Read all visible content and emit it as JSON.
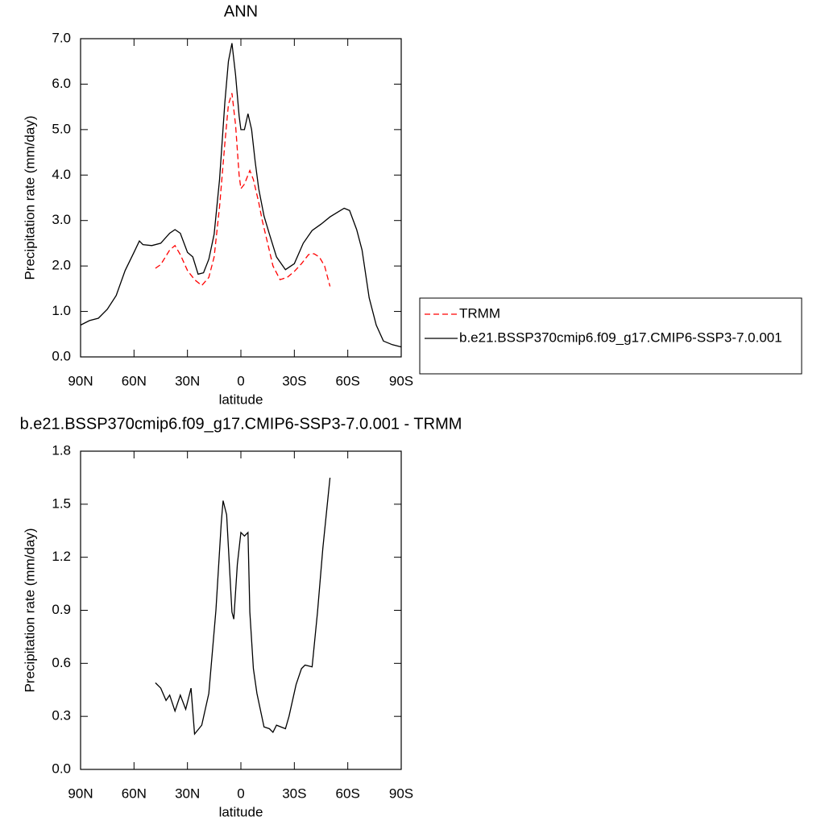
{
  "chart_data": [
    {
      "type": "line",
      "title": "ANN",
      "xlabel": "latitude",
      "ylabel": "Precipitation rate (mm/day)",
      "xlim": [
        90,
        -90
      ],
      "xticks": [
        {
          "value": 90,
          "label": "90N"
        },
        {
          "value": 60,
          "label": "60N"
        },
        {
          "value": 30,
          "label": "30N"
        },
        0,
        {
          "value": -30,
          "label": "30S"
        },
        {
          "value": -60,
          "label": "60S"
        },
        {
          "value": -90,
          "label": "90S"
        }
      ],
      "ylim": [
        0,
        7
      ],
      "yticks": [
        {
          "value": 0,
          "label": "0.0"
        },
        {
          "value": 1,
          "label": "1.0"
        },
        {
          "value": 2,
          "label": "2.0"
        },
        {
          "value": 3,
          "label": "3.0"
        },
        {
          "value": 4,
          "label": "4.0"
        },
        {
          "value": 5,
          "label": "5.0"
        },
        {
          "value": 6,
          "label": "6.0"
        },
        {
          "value": 7,
          "label": "7.0"
        }
      ],
      "legend": "right",
      "series": [
        {
          "name": "TRMM",
          "color": "#ff0000",
          "dashed": true,
          "x": [
            48,
            45,
            40,
            37,
            34,
            30,
            26,
            22,
            18,
            15,
            12,
            9,
            7,
            5,
            3,
            1,
            0,
            -2,
            -5,
            -7,
            -10,
            -12,
            -15,
            -18,
            -22,
            -26,
            -30,
            -34,
            -38,
            -41,
            -44,
            -47,
            -50
          ],
          "values": [
            1.95,
            2.03,
            2.35,
            2.45,
            2.25,
            1.9,
            1.7,
            1.57,
            1.75,
            2.2,
            3.3,
            4.7,
            5.55,
            5.8,
            5.1,
            4.0,
            3.7,
            3.8,
            4.1,
            3.9,
            3.4,
            3.0,
            2.5,
            2.0,
            1.7,
            1.75,
            1.88,
            2.05,
            2.25,
            2.27,
            2.2,
            2.0,
            1.55
          ]
        },
        {
          "name": "b.e21.BSSP370cmip6.f09_g17.CMIP6-SSP3-7.0.001",
          "color": "#000000",
          "dashed": false,
          "x": [
            90,
            85,
            80,
            75,
            70,
            65,
            60,
            57,
            55,
            50,
            45,
            40,
            37,
            34,
            30,
            27,
            24,
            21,
            18,
            15,
            12,
            9,
            7,
            5,
            3,
            1,
            0,
            -2,
            -4,
            -6,
            -8,
            -10,
            -13,
            -16,
            -20,
            -25,
            -30,
            -35,
            -40,
            -45,
            -50,
            -55,
            -58,
            -61,
            -65,
            -68,
            -72,
            -76,
            -80,
            -85,
            -90
          ],
          "values": [
            0.7,
            0.8,
            0.85,
            1.05,
            1.35,
            1.9,
            2.3,
            2.55,
            2.47,
            2.45,
            2.5,
            2.72,
            2.8,
            2.72,
            2.3,
            2.2,
            1.82,
            1.85,
            2.15,
            2.7,
            3.9,
            5.6,
            6.5,
            6.9,
            6.2,
            5.3,
            5.0,
            5.0,
            5.35,
            5.0,
            4.3,
            3.7,
            3.1,
            2.7,
            2.2,
            1.92,
            2.05,
            2.5,
            2.78,
            2.92,
            3.08,
            3.2,
            3.27,
            3.22,
            2.8,
            2.35,
            1.3,
            0.7,
            0.35,
            0.27,
            0.22
          ]
        }
      ]
    },
    {
      "type": "line",
      "title": "b.e21.BSSP370cmip6.f09_g17.CMIP6-SSP3-7.0.001 - TRMM",
      "xlabel": "latitude",
      "ylabel": "Precipitation rate (mm/day)",
      "xlim": [
        90,
        -90
      ],
      "xticks": [
        {
          "value": 90,
          "label": "90N"
        },
        {
          "value": 60,
          "label": "60N"
        },
        {
          "value": 30,
          "label": "30N"
        },
        0,
        {
          "value": -30,
          "label": "30S"
        },
        {
          "value": -60,
          "label": "60S"
        },
        {
          "value": -90,
          "label": "90S"
        }
      ],
      "ylim": [
        0,
        1.8
      ],
      "yticks": [
        {
          "value": 0,
          "label": "0.0"
        },
        0.3,
        0.6,
        0.9,
        1.2,
        1.5,
        1.8
      ],
      "color": "#000000",
      "x": [
        48,
        45,
        42,
        40,
        37,
        34,
        31,
        28,
        26,
        22,
        18,
        14,
        11,
        10,
        8,
        5,
        4,
        2,
        0,
        -2,
        -4,
        -5,
        -7,
        -9,
        -13,
        -16,
        -18,
        -20,
        -25,
        -27,
        -31,
        -34,
        -36,
        -40,
        -43,
        -46,
        -50
      ],
      "values": [
        0.49,
        0.46,
        0.39,
        0.42,
        0.33,
        0.42,
        0.34,
        0.46,
        0.2,
        0.25,
        0.43,
        0.9,
        1.4,
        1.52,
        1.44,
        0.89,
        0.85,
        1.16,
        1.34,
        1.32,
        1.34,
        0.89,
        0.57,
        0.43,
        0.24,
        0.23,
        0.21,
        0.25,
        0.23,
        0.3,
        0.48,
        0.57,
        0.59,
        0.58,
        0.89,
        1.25,
        1.65
      ]
    }
  ]
}
